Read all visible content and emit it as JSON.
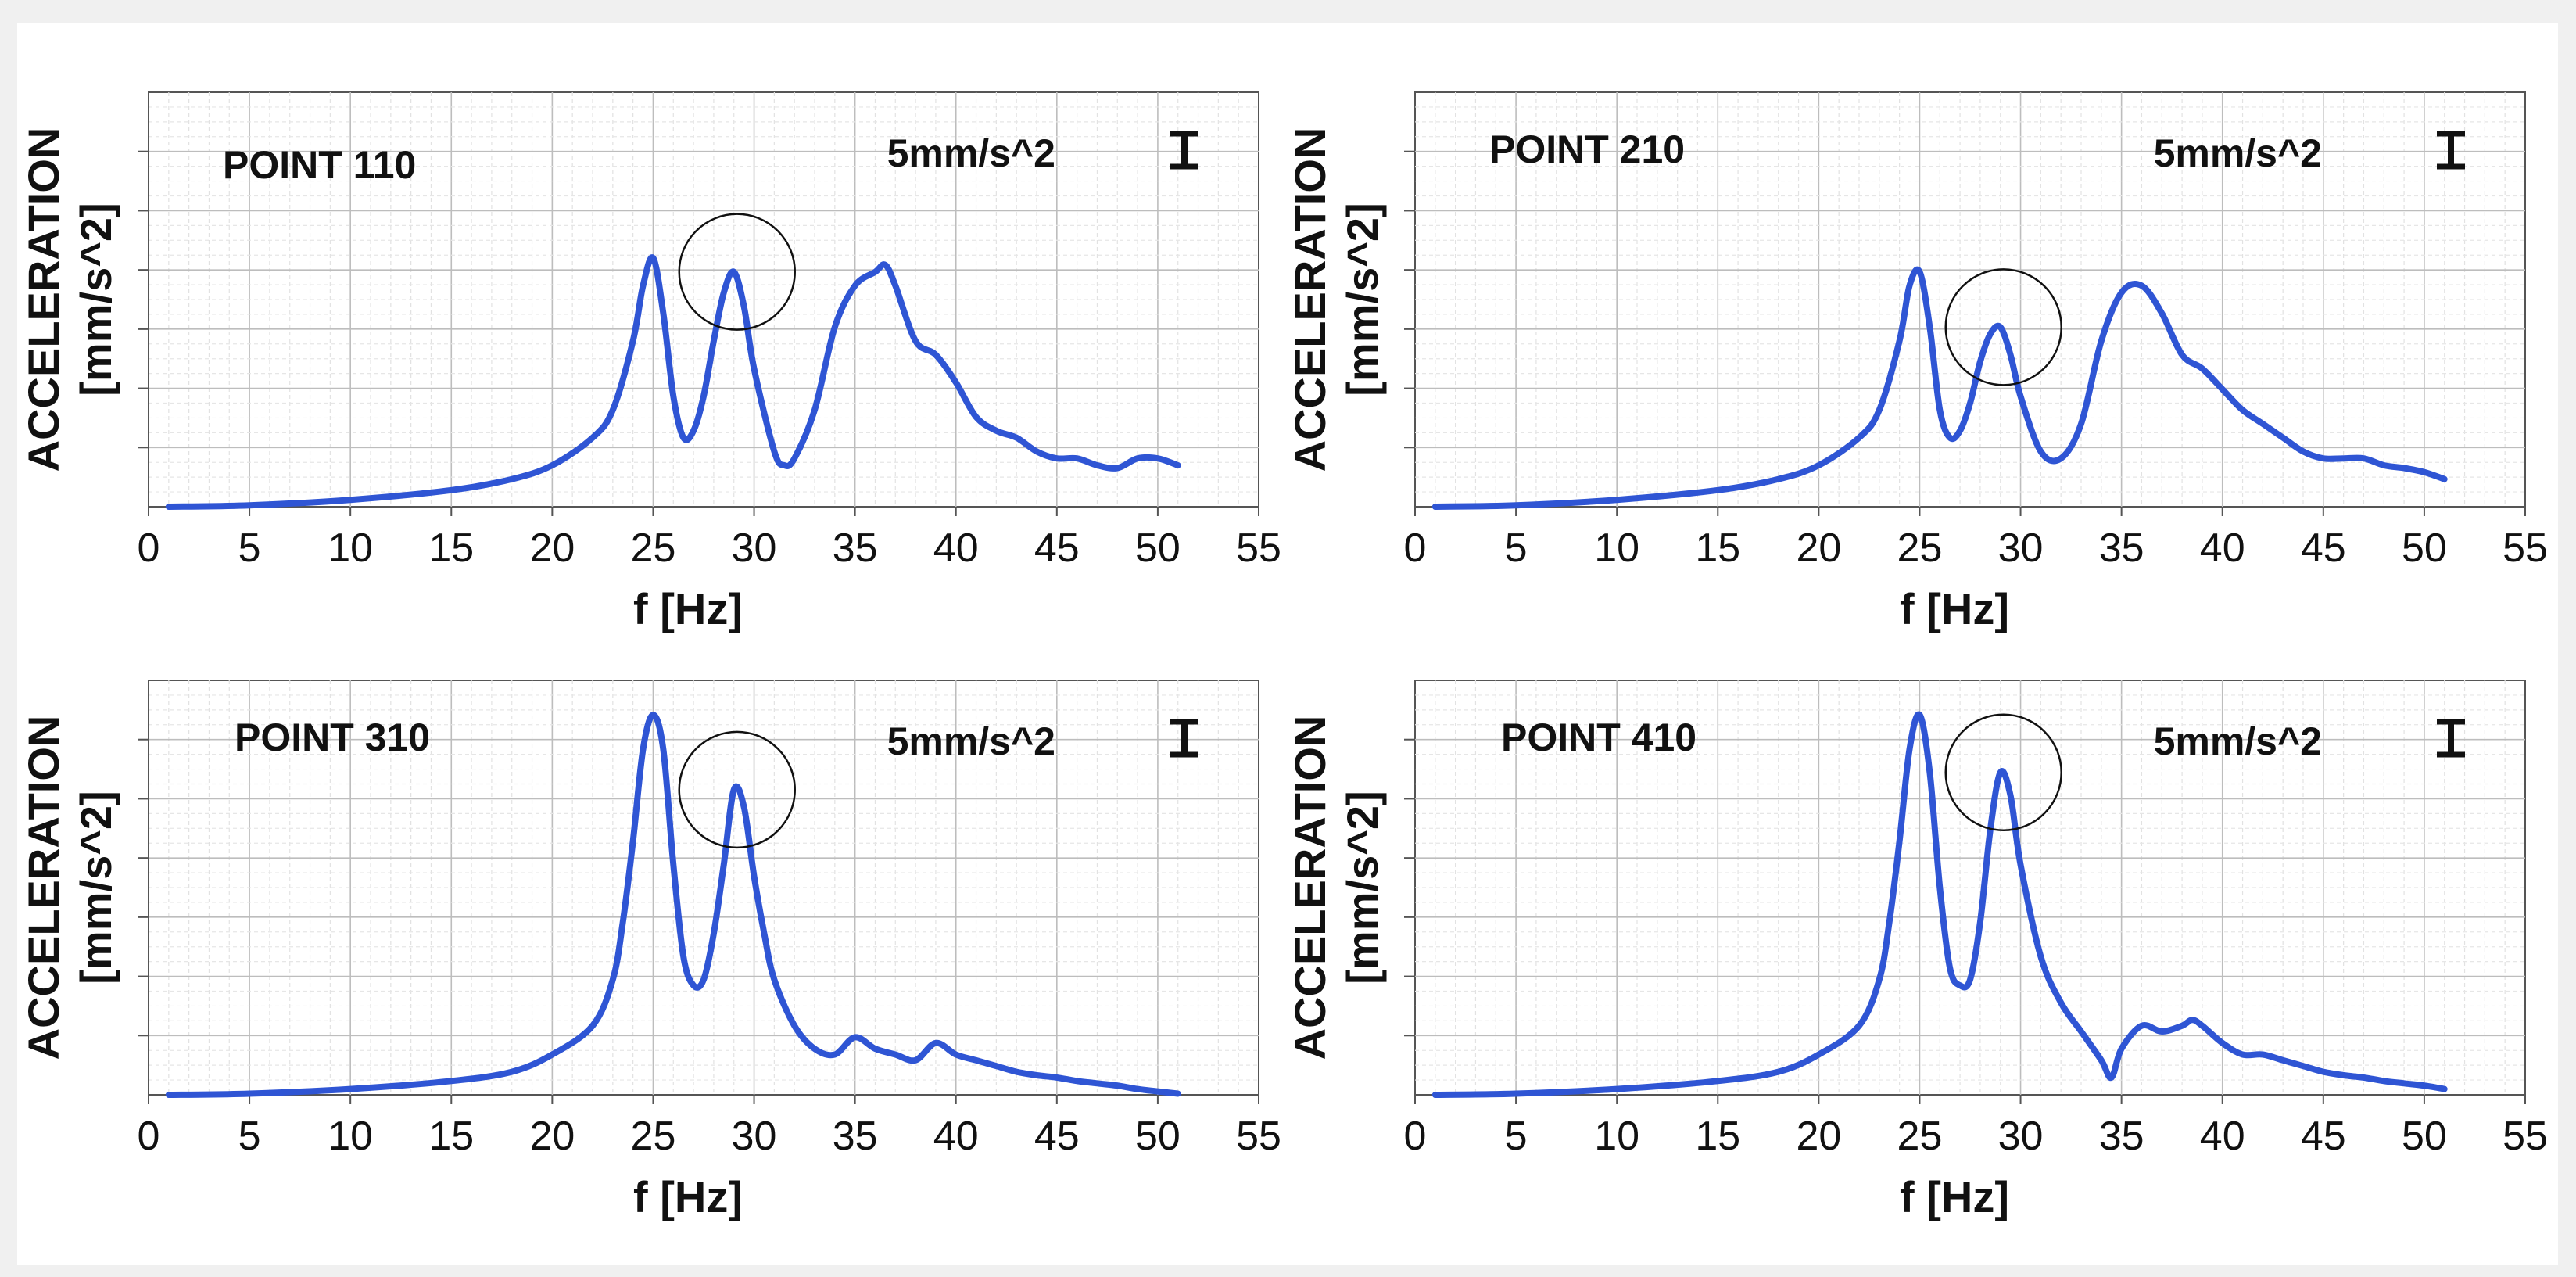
{
  "chart_data": [
    {
      "type": "line",
      "title": "POINT 110",
      "scale_label": "5mm/s^2",
      "xlabel": "f [Hz]",
      "ylabel_line1": "ACCELERATION",
      "ylabel_line2": "[mm/s^2]",
      "xlim": [
        0,
        55
      ],
      "x_ticks": [
        "0",
        "5",
        "10",
        "15",
        "20",
        "25",
        "30",
        "35",
        "40",
        "45",
        "50",
        "55"
      ],
      "grid": true,
      "line_color": "#2f55d4",
      "highlight_circle_at_hz": 29,
      "series": [
        {
          "x": [
            1,
            5,
            10,
            15,
            18,
            20,
            22,
            23,
            24,
            24.5,
            25,
            25.5,
            26,
            26.5,
            27,
            27.5,
            28,
            28.5,
            29,
            29.5,
            30,
            31,
            31.5,
            32,
            33,
            34,
            35,
            36,
            36.5,
            37,
            38,
            39,
            40,
            41,
            42,
            43,
            44,
            45,
            46,
            47,
            48,
            49,
            50,
            51
          ],
          "y": [
            0,
            0.1,
            0.5,
            1.2,
            2,
            3,
            5,
            7,
            12,
            16,
            18,
            14,
            8,
            5,
            5.5,
            8,
            12,
            15.5,
            17,
            14.5,
            10,
            4,
            3,
            3.5,
            7,
            13,
            16,
            17,
            17.5,
            16,
            12,
            11,
            9,
            6.5,
            5.5,
            5,
            4,
            3.5,
            3.5,
            3,
            2.8,
            3.5,
            3.5,
            3
          ]
        }
      ]
    },
    {
      "type": "line",
      "title": "POINT 210",
      "scale_label": "5mm/s^2",
      "xlabel": "f [Hz]",
      "ylabel_line1": "ACCELERATION",
      "ylabel_line2": "[mm/s^2]",
      "xlim": [
        0,
        55
      ],
      "x_ticks": [
        "0",
        "5",
        "10",
        "15",
        "20",
        "25",
        "30",
        "35",
        "40",
        "45",
        "50",
        "55"
      ],
      "grid": true,
      "line_color": "#2f55d4",
      "highlight_circle_at_hz": 29,
      "series": [
        {
          "x": [
            1,
            5,
            10,
            15,
            18,
            20,
            22,
            23,
            24,
            24.5,
            25,
            25.5,
            26,
            26.5,
            27,
            27.5,
            28,
            28.5,
            29,
            29.5,
            30,
            31,
            32,
            33,
            34,
            35,
            36,
            37,
            38,
            39,
            40,
            41,
            42,
            43,
            44,
            45,
            46,
            47,
            48,
            49,
            50,
            51
          ],
          "y": [
            0,
            0.1,
            0.5,
            1.2,
            2,
            3,
            5,
            7,
            12,
            16,
            17,
            13,
            7,
            5,
            5.5,
            7.5,
            10.5,
            12.5,
            13,
            11,
            8,
            4,
            3.5,
            6,
            12,
            15.5,
            16,
            14,
            11,
            10,
            8.5,
            7,
            6,
            5,
            4,
            3.5,
            3.5,
            3.5,
            3,
            2.8,
            2.5,
            2
          ]
        }
      ]
    },
    {
      "type": "line",
      "title": "POINT 310",
      "scale_label": "5mm/s^2",
      "xlabel": "f [Hz]",
      "ylabel_line1": "ACCELERATION",
      "ylabel_line2": "[mm/s^2]",
      "xlim": [
        0,
        55
      ],
      "x_ticks": [
        "0",
        "5",
        "10",
        "15",
        "20",
        "25",
        "30",
        "35",
        "40",
        "45",
        "50",
        "55"
      ],
      "grid": true,
      "line_color": "#2f55d4",
      "highlight_circle_at_hz": 29,
      "series": [
        {
          "x": [
            1,
            5,
            10,
            15,
            18,
            20,
            22,
            23,
            23.5,
            24,
            24.5,
            25,
            25.5,
            26,
            26.5,
            27,
            27.5,
            28,
            28.5,
            29,
            29.5,
            30,
            30.5,
            31,
            32,
            33,
            34,
            35,
            36,
            37,
            38,
            39,
            40,
            41,
            42,
            43,
            44,
            45,
            46,
            47,
            48,
            49,
            50,
            51
          ],
          "y": [
            0,
            0.1,
            0.5,
            1.2,
            2,
            3.5,
            6,
            10,
            15,
            22,
            30,
            33,
            30,
            20,
            12,
            9.5,
            10,
            14,
            20,
            26.5,
            25,
            19,
            14,
            10,
            6,
            4,
            3.5,
            5,
            4,
            3.5,
            3,
            4.5,
            3.5,
            3,
            2.5,
            2,
            1.7,
            1.5,
            1.2,
            1,
            0.8,
            0.5,
            0.3,
            0.1
          ]
        }
      ]
    },
    {
      "type": "line",
      "title": "POINT 410",
      "scale_label": "5mm/s^2",
      "xlabel": "f [Hz]",
      "ylabel_line1": "ACCELERATION",
      "ylabel_line2": "[mm/s^2]",
      "xlim": [
        0,
        55
      ],
      "x_ticks": [
        "0",
        "5",
        "10",
        "15",
        "20",
        "25",
        "30",
        "35",
        "40",
        "45",
        "50",
        "55"
      ],
      "grid": true,
      "line_color": "#2f55d4",
      "highlight_circle_at_hz": 29,
      "series": [
        {
          "x": [
            1,
            5,
            10,
            15,
            18,
            20,
            22,
            23,
            23.5,
            24,
            24.5,
            25,
            25.5,
            26,
            26.5,
            27,
            27.5,
            28,
            28.5,
            29,
            29.5,
            30,
            31,
            32,
            33,
            34,
            34.5,
            35,
            36,
            37,
            38,
            38.5,
            39,
            40,
            41,
            42,
            43,
            44,
            45,
            46,
            47,
            48,
            49,
            50,
            51
          ],
          "y": [
            0,
            0.1,
            0.5,
            1.2,
            2,
            3.5,
            6,
            10,
            15,
            22,
            30,
            33,
            28,
            18,
            11,
            9.5,
            10,
            15,
            23,
            28,
            26,
            20,
            12,
            8,
            5.5,
            3,
            1.5,
            4,
            6,
            5.5,
            6,
            6.5,
            6,
            4.5,
            3.5,
            3.5,
            3,
            2.5,
            2,
            1.7,
            1.5,
            1.2,
            1,
            0.8,
            0.5
          ]
        }
      ]
    }
  ]
}
